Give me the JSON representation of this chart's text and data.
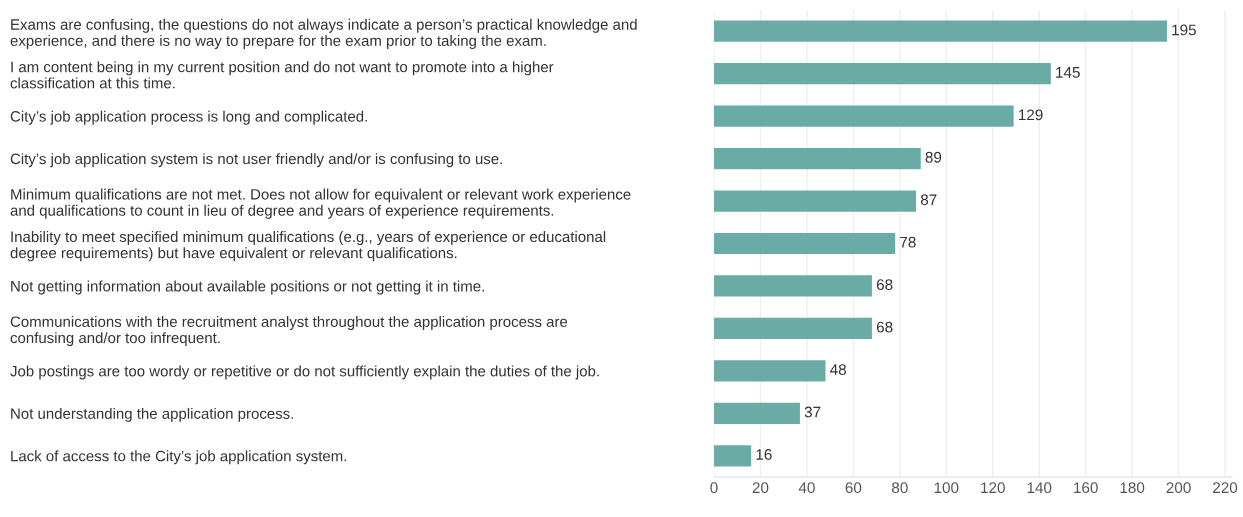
{
  "chart_data": {
    "type": "bar",
    "orientation": "horizontal",
    "categories": [
      "Exams are confusing, the questions do not always indicate a person’s practical knowledge and\nexperience, and there is no way to prepare for the exam prior to taking the exam.",
      "I am content being in my current position and do not want to promote into a higher\nclassification at this time.",
      "City’s job application process is long and complicated.",
      "City’s job application system is not user friendly and/or is confusing to use.",
      "Minimum qualifications are not met. Does not allow for equivalent or relevant work experience\nand qualifications to count in lieu of degree and years of experience requirements.",
      "Inability to meet specified minimum qualifications (e.g., years of experience or educational\ndegree requirements) but have equivalent or relevant qualifications.",
      "Not getting information about available positions or not getting it in time.",
      "Communications with the recruitment analyst throughout the application process are\nconfusing and/or too infrequent.",
      "Job postings are too wordy or repetitive or do not sufficiently explain the duties of the job.",
      "Not understanding the application process.",
      "Lack of access to the City’s job application system."
    ],
    "values": [
      195,
      145,
      129,
      89,
      87,
      78,
      68,
      68,
      48,
      37,
      16
    ],
    "color": "#6aaba5",
    "xlim": [
      0,
      223
    ],
    "xticks": [
      0,
      20,
      40,
      60,
      80,
      100,
      120,
      140,
      160,
      180,
      200,
      220
    ],
    "grid": "x",
    "data_labels": true
  }
}
